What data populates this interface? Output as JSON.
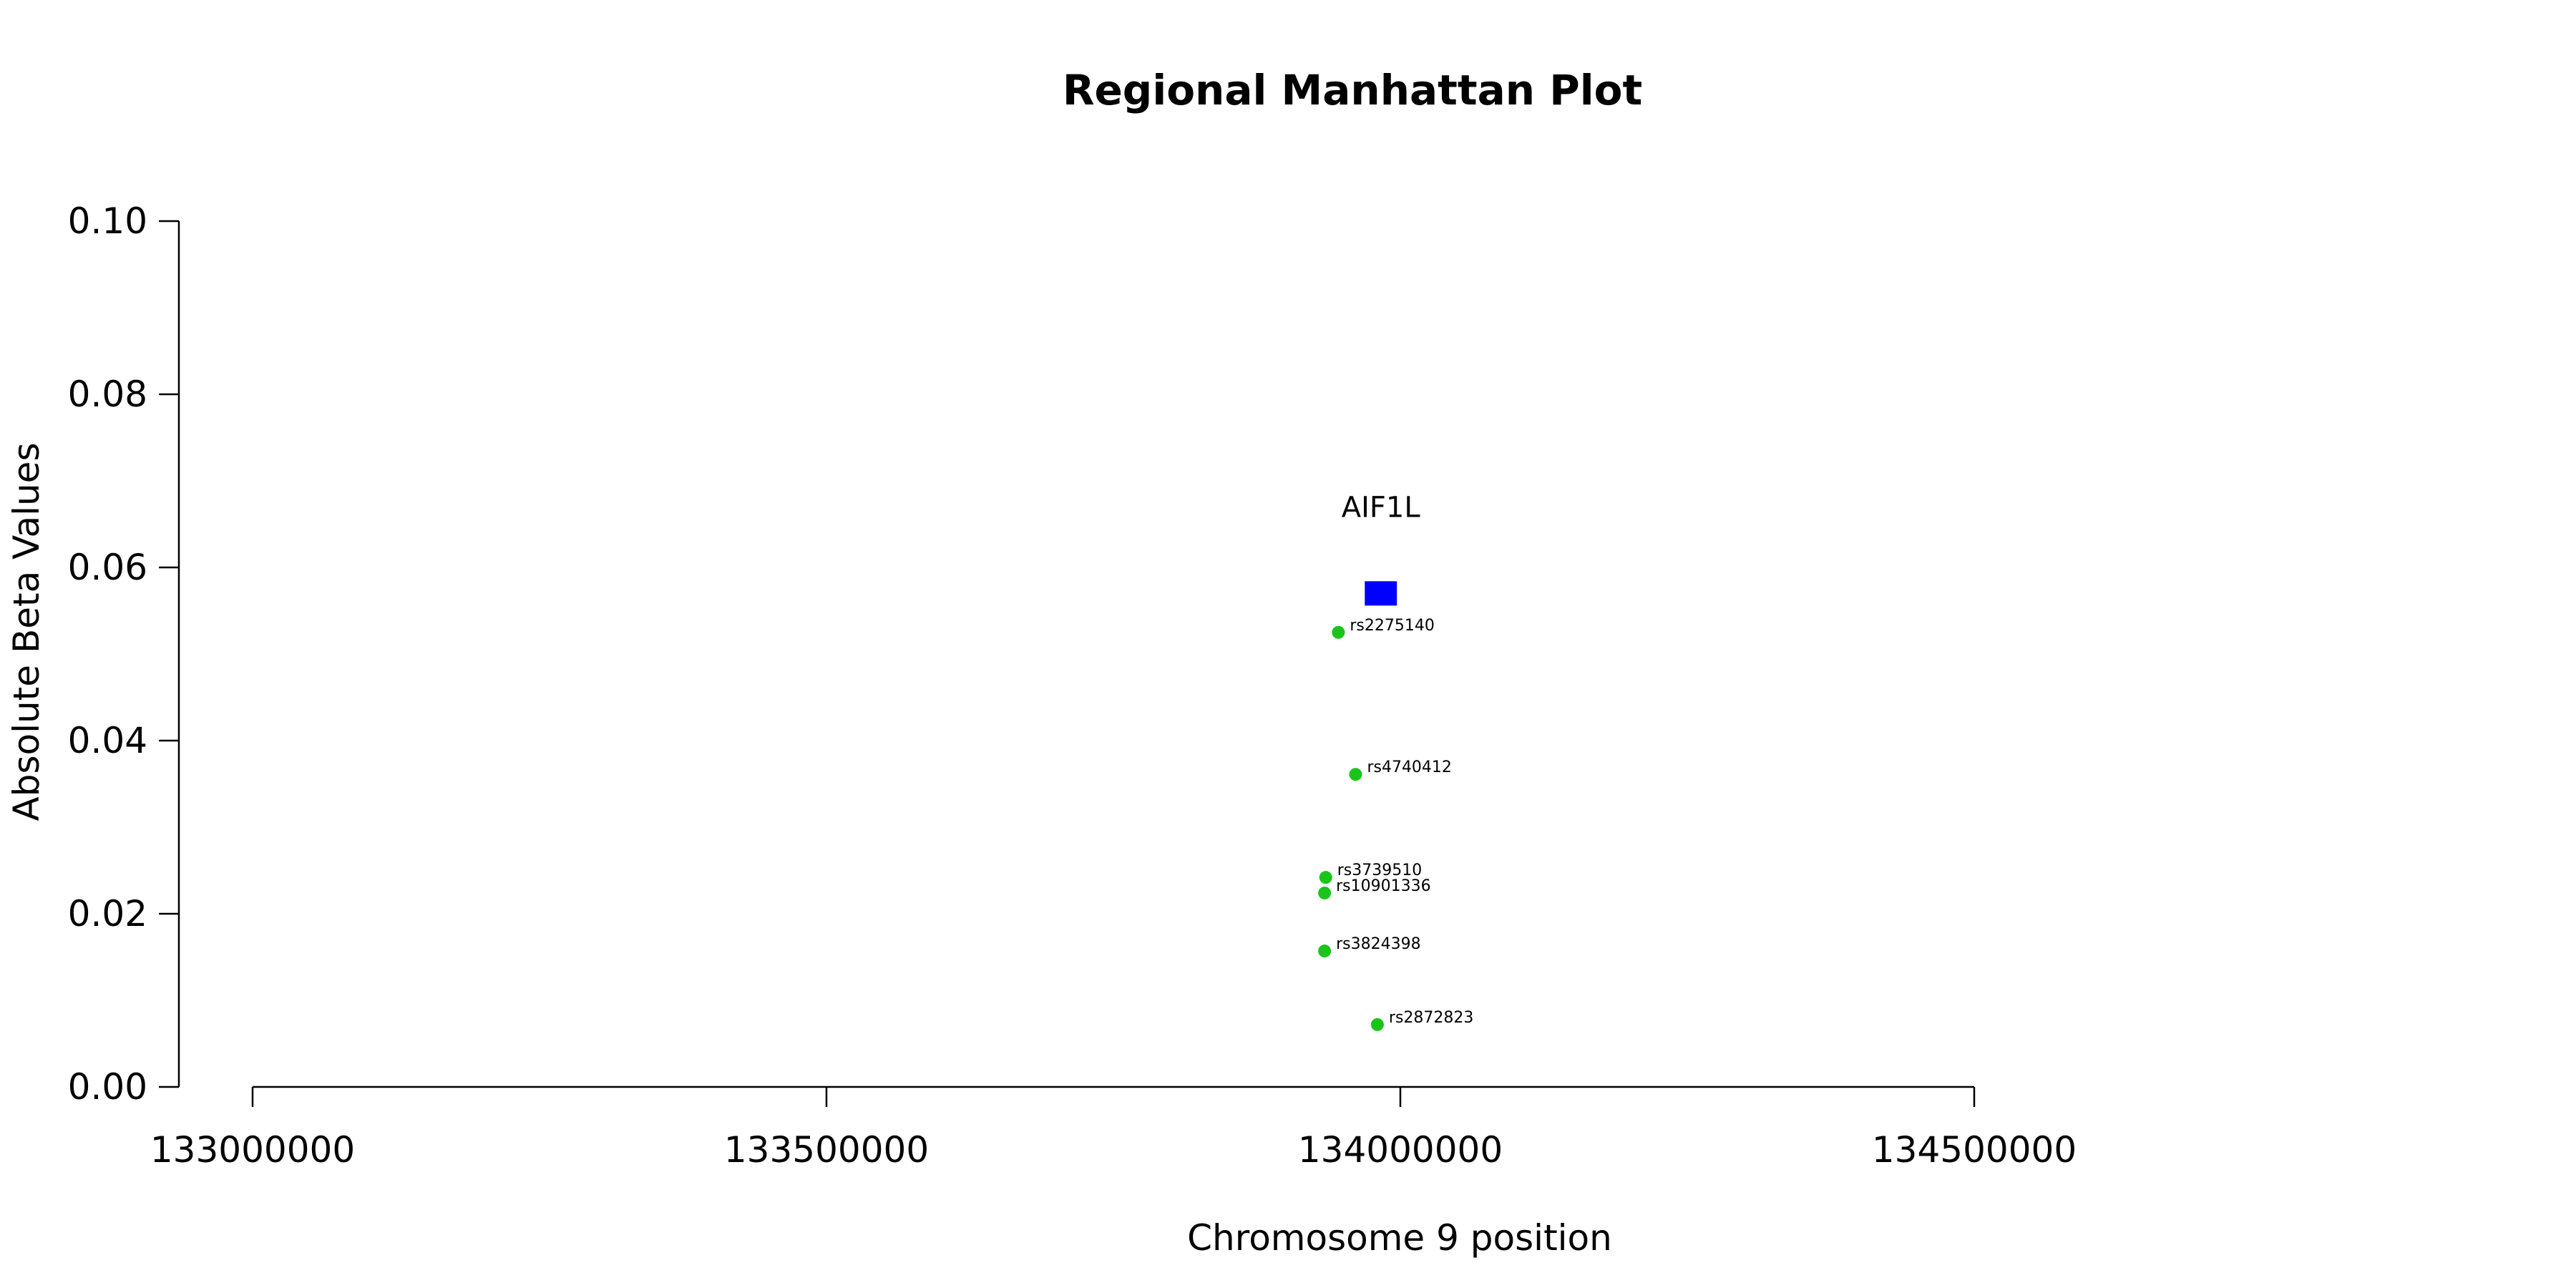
{
  "chart_data": {
    "type": "scatter",
    "title": "Regional Manhattan Plot",
    "xlabel": "Chromosome 9 position",
    "ylabel": "Absolute Beta Values",
    "xlim": [
      133000000,
      134500000
    ],
    "ylim": [
      0,
      0.1
    ],
    "x_ticks": [
      133000000,
      133500000,
      134000000,
      134500000
    ],
    "x_tick_labels": [
      "133000000",
      "133500000",
      "134000000",
      "134500000"
    ],
    "y_ticks": [
      0,
      0.02,
      0.04,
      0.06,
      0.08,
      0.1
    ],
    "y_tick_labels": [
      "0.00",
      "0.02",
      "0.04",
      "0.06",
      "0.08",
      "0.10"
    ],
    "grid": false,
    "snp_color": "#1ac41a",
    "gene_color": "#0000ff",
    "snps": [
      {
        "label": "rs2275140",
        "x": 133946000,
        "y": 0.0525
      },
      {
        "label": "rs4740412",
        "x": 133961000,
        "y": 0.0361
      },
      {
        "label": "rs3739510",
        "x": 133935000,
        "y": 0.0242
      },
      {
        "label": "rs10901336",
        "x": 133934000,
        "y": 0.0224
      },
      {
        "label": "rs3824398",
        "x": 133934000,
        "y": 0.0157
      },
      {
        "label": "rs2872823",
        "x": 133980000,
        "y": 0.0072
      }
    ],
    "genes": [
      {
        "label": "AIF1L",
        "x_start": 133969000,
        "x_end": 133997000,
        "y": 0.057,
        "label_y": 0.067
      }
    ]
  }
}
